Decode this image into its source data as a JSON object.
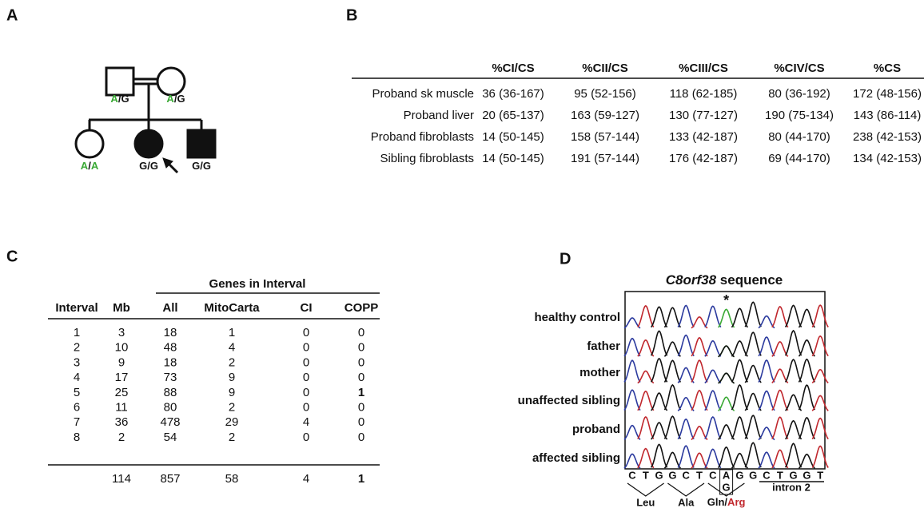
{
  "panel_a": {
    "label": "A",
    "genotypes": {
      "father": "A/G",
      "mother": "A/G",
      "sibling": "A/A",
      "proband": "G/G",
      "affected_sibling": "G/G"
    },
    "allele_color": "#3aa935"
  },
  "panel_b": {
    "label": "B",
    "headers": [
      "%CI/CS",
      "%CII/CS",
      "%CIII/CS",
      "%CIV/CS",
      "%CS"
    ],
    "rows": [
      {
        "label": "Proband sk muscle",
        "cells": [
          "36 (36-167)",
          "95 (52-156)",
          "118 (62-185)",
          "80 (36-192)",
          "172 (48-156)"
        ]
      },
      {
        "label": "Proband liver",
        "cells": [
          "20 (65-137)",
          "163 (59-127)",
          "130 (77-127)",
          "190 (75-134)",
          "143 (86-114)"
        ]
      },
      {
        "label": "Proband fibroblasts",
        "cells": [
          "14 (50-145)",
          "158 (57-144)",
          "133 (42-187)",
          "80 (44-170)",
          "238 (42-153)"
        ]
      },
      {
        "label": "Sibling fibroblasts",
        "cells": [
          "14 (50-145)",
          "191 (57-144)",
          "176 (42-187)",
          "69 (44-170)",
          "134 (42-153)"
        ]
      }
    ]
  },
  "panel_c": {
    "label": "C",
    "group_header": "Genes in Interval",
    "headers": [
      "Interval",
      "Mb",
      "All",
      "MitoCarta",
      "CI",
      "COPP"
    ],
    "rows": [
      [
        1,
        3,
        18,
        1,
        0,
        0
      ],
      [
        2,
        10,
        48,
        4,
        0,
        0
      ],
      [
        3,
        9,
        18,
        2,
        0,
        0
      ],
      [
        4,
        17,
        73,
        9,
        0,
        0
      ],
      [
        5,
        25,
        88,
        9,
        0,
        1
      ],
      [
        6,
        11,
        80,
        2,
        0,
        0
      ],
      [
        7,
        36,
        478,
        29,
        4,
        0
      ],
      [
        8,
        2,
        54,
        2,
        0,
        0
      ]
    ],
    "total": [
      114,
      857,
      58,
      4,
      1
    ],
    "highlight_color": "#b5121b"
  },
  "panel_d": {
    "label": "D",
    "gene": "C8orf38",
    "title": "sequence",
    "rows": [
      "healthy control",
      "father",
      "mother",
      "unaffected sibling",
      "proband",
      "affected sibling"
    ],
    "marker": "*",
    "bases": [
      "C",
      "T",
      "G",
      "G",
      "C",
      "T",
      "C",
      "A",
      "G",
      "G",
      "C",
      "T",
      "G",
      "G",
      "T"
    ],
    "alt_base": "G",
    "intron": "intron 2",
    "amino_acids": [
      "Leu",
      "Ala",
      "Gln/Arg"
    ],
    "base_colors": {
      "A": "#3aa935",
      "C": "#2b3a9e",
      "G": "#111111",
      "T": "#c0272d"
    }
  }
}
